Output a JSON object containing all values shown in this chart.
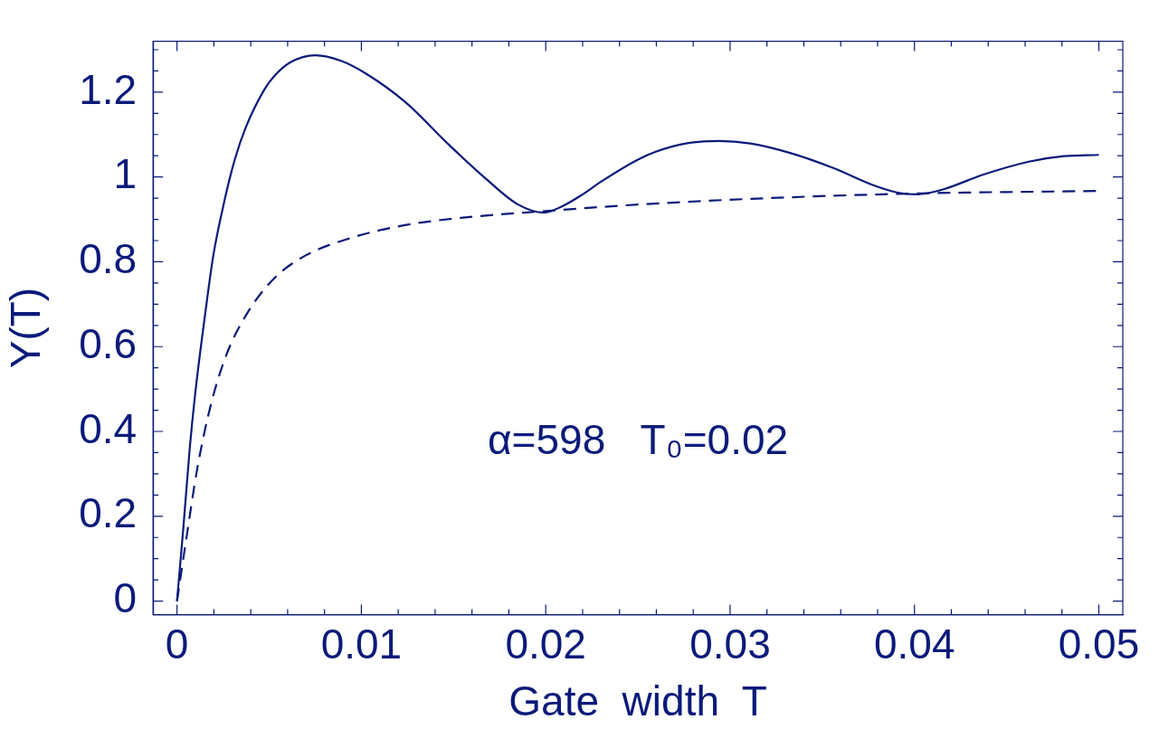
{
  "chart_data": {
    "type": "line",
    "xlabel": "Gate  width  T",
    "ylabel": "Y(T)",
    "annotations": [
      "α=598   T₀=0.02"
    ],
    "legend": false,
    "grid": false,
    "marker": "none",
    "xlim": [
      -0.0013,
      0.0513
    ],
    "ylim": [
      -0.032,
      1.32
    ],
    "xticks": [
      0,
      {
        "value": 0.002,
        "label": null
      },
      {
        "value": 0.004,
        "label": null
      },
      {
        "value": 0.006,
        "label": null
      },
      {
        "value": 0.008,
        "label": null
      },
      0.01,
      {
        "value": 0.012,
        "label": null
      },
      {
        "value": 0.014,
        "label": null
      },
      {
        "value": 0.016,
        "label": null
      },
      {
        "value": 0.018,
        "label": null
      },
      0.02,
      {
        "value": 0.022,
        "label": null
      },
      {
        "value": 0.024,
        "label": null
      },
      {
        "value": 0.026,
        "label": null
      },
      {
        "value": 0.028,
        "label": null
      },
      0.03,
      {
        "value": 0.032,
        "label": null
      },
      {
        "value": 0.034,
        "label": null
      },
      {
        "value": 0.036,
        "label": null
      },
      {
        "value": 0.038,
        "label": null
      },
      0.04,
      {
        "value": 0.042,
        "label": null
      },
      {
        "value": 0.044,
        "label": null
      },
      {
        "value": 0.046,
        "label": null
      },
      {
        "value": 0.048,
        "label": null
      },
      0.05
    ],
    "yticks": [
      0,
      {
        "value": 0.05,
        "label": null
      },
      {
        "value": 0.1,
        "label": null
      },
      {
        "value": 0.15,
        "label": null
      },
      0.2,
      {
        "value": 0.25,
        "label": null
      },
      {
        "value": 0.3,
        "label": null
      },
      {
        "value": 0.35,
        "label": null
      },
      0.4,
      {
        "value": 0.45,
        "label": null
      },
      {
        "value": 0.5,
        "label": null
      },
      {
        "value": 0.55,
        "label": null
      },
      0.6,
      {
        "value": 0.65,
        "label": null
      },
      {
        "value": 0.7,
        "label": null
      },
      {
        "value": 0.75,
        "label": null
      },
      0.8,
      {
        "value": 0.85,
        "label": null
      },
      {
        "value": 0.9,
        "label": null
      },
      {
        "value": 0.95,
        "label": null
      },
      1,
      {
        "value": 1.05,
        "label": null
      },
      {
        "value": 1.1,
        "label": null
      },
      {
        "value": 1.15,
        "label": null
      },
      1.2,
      {
        "value": 1.25,
        "label": null
      },
      {
        "value": 1.3,
        "label": null
      }
    ],
    "series": [
      {
        "color": "#0a1a7a",
        "line_style": "solid",
        "x": [
          0,
          0.00036,
          0.00069,
          0.001,
          0.00154,
          0.00197,
          0.0026,
          0.00314,
          0.00374,
          0.00475,
          0.00528,
          0.00614,
          0.0075,
          0.0089,
          0.01028,
          0.0124,
          0.0147,
          0.0167,
          0.0185,
          0.0199,
          0.0209,
          0.0219,
          0.023,
          0.025,
          0.026,
          0.0276,
          0.0294,
          0.0311,
          0.0333,
          0.0356,
          0.0378,
          0.0391,
          0.0401,
          0.0415,
          0.0437,
          0.0462,
          0.0481,
          0.05
        ],
        "values": [
          0,
          0.181,
          0.36,
          0.494,
          0.681,
          0.815,
          0.949,
          1.042,
          1.118,
          1.207,
          1.238,
          1.27,
          1.287,
          1.274,
          1.243,
          1.176,
          1.078,
          0.998,
          0.935,
          0.916,
          0.931,
          0.956,
          0.989,
          1.041,
          1.06,
          1.079,
          1.085,
          1.079,
          1.056,
          1.021,
          0.98,
          0.963,
          0.959,
          0.97,
          1.005,
          1.036,
          1.049,
          1.052
        ]
      },
      {
        "color": "#0a1a7a",
        "line_style": "dashed",
        "x": [
          0,
          0.00047,
          0.00111,
          0.00186,
          0.0027,
          0.00377,
          0.00527,
          0.00698,
          0.00934,
          0.0123,
          0.0155,
          0.0198,
          0.0254,
          0.032,
          0.04,
          0.05
        ],
        "values": [
          0,
          0.137,
          0.315,
          0.467,
          0.583,
          0.676,
          0.761,
          0.815,
          0.855,
          0.886,
          0.904,
          0.919,
          0.936,
          0.95,
          0.961,
          0.967
        ]
      }
    ]
  }
}
